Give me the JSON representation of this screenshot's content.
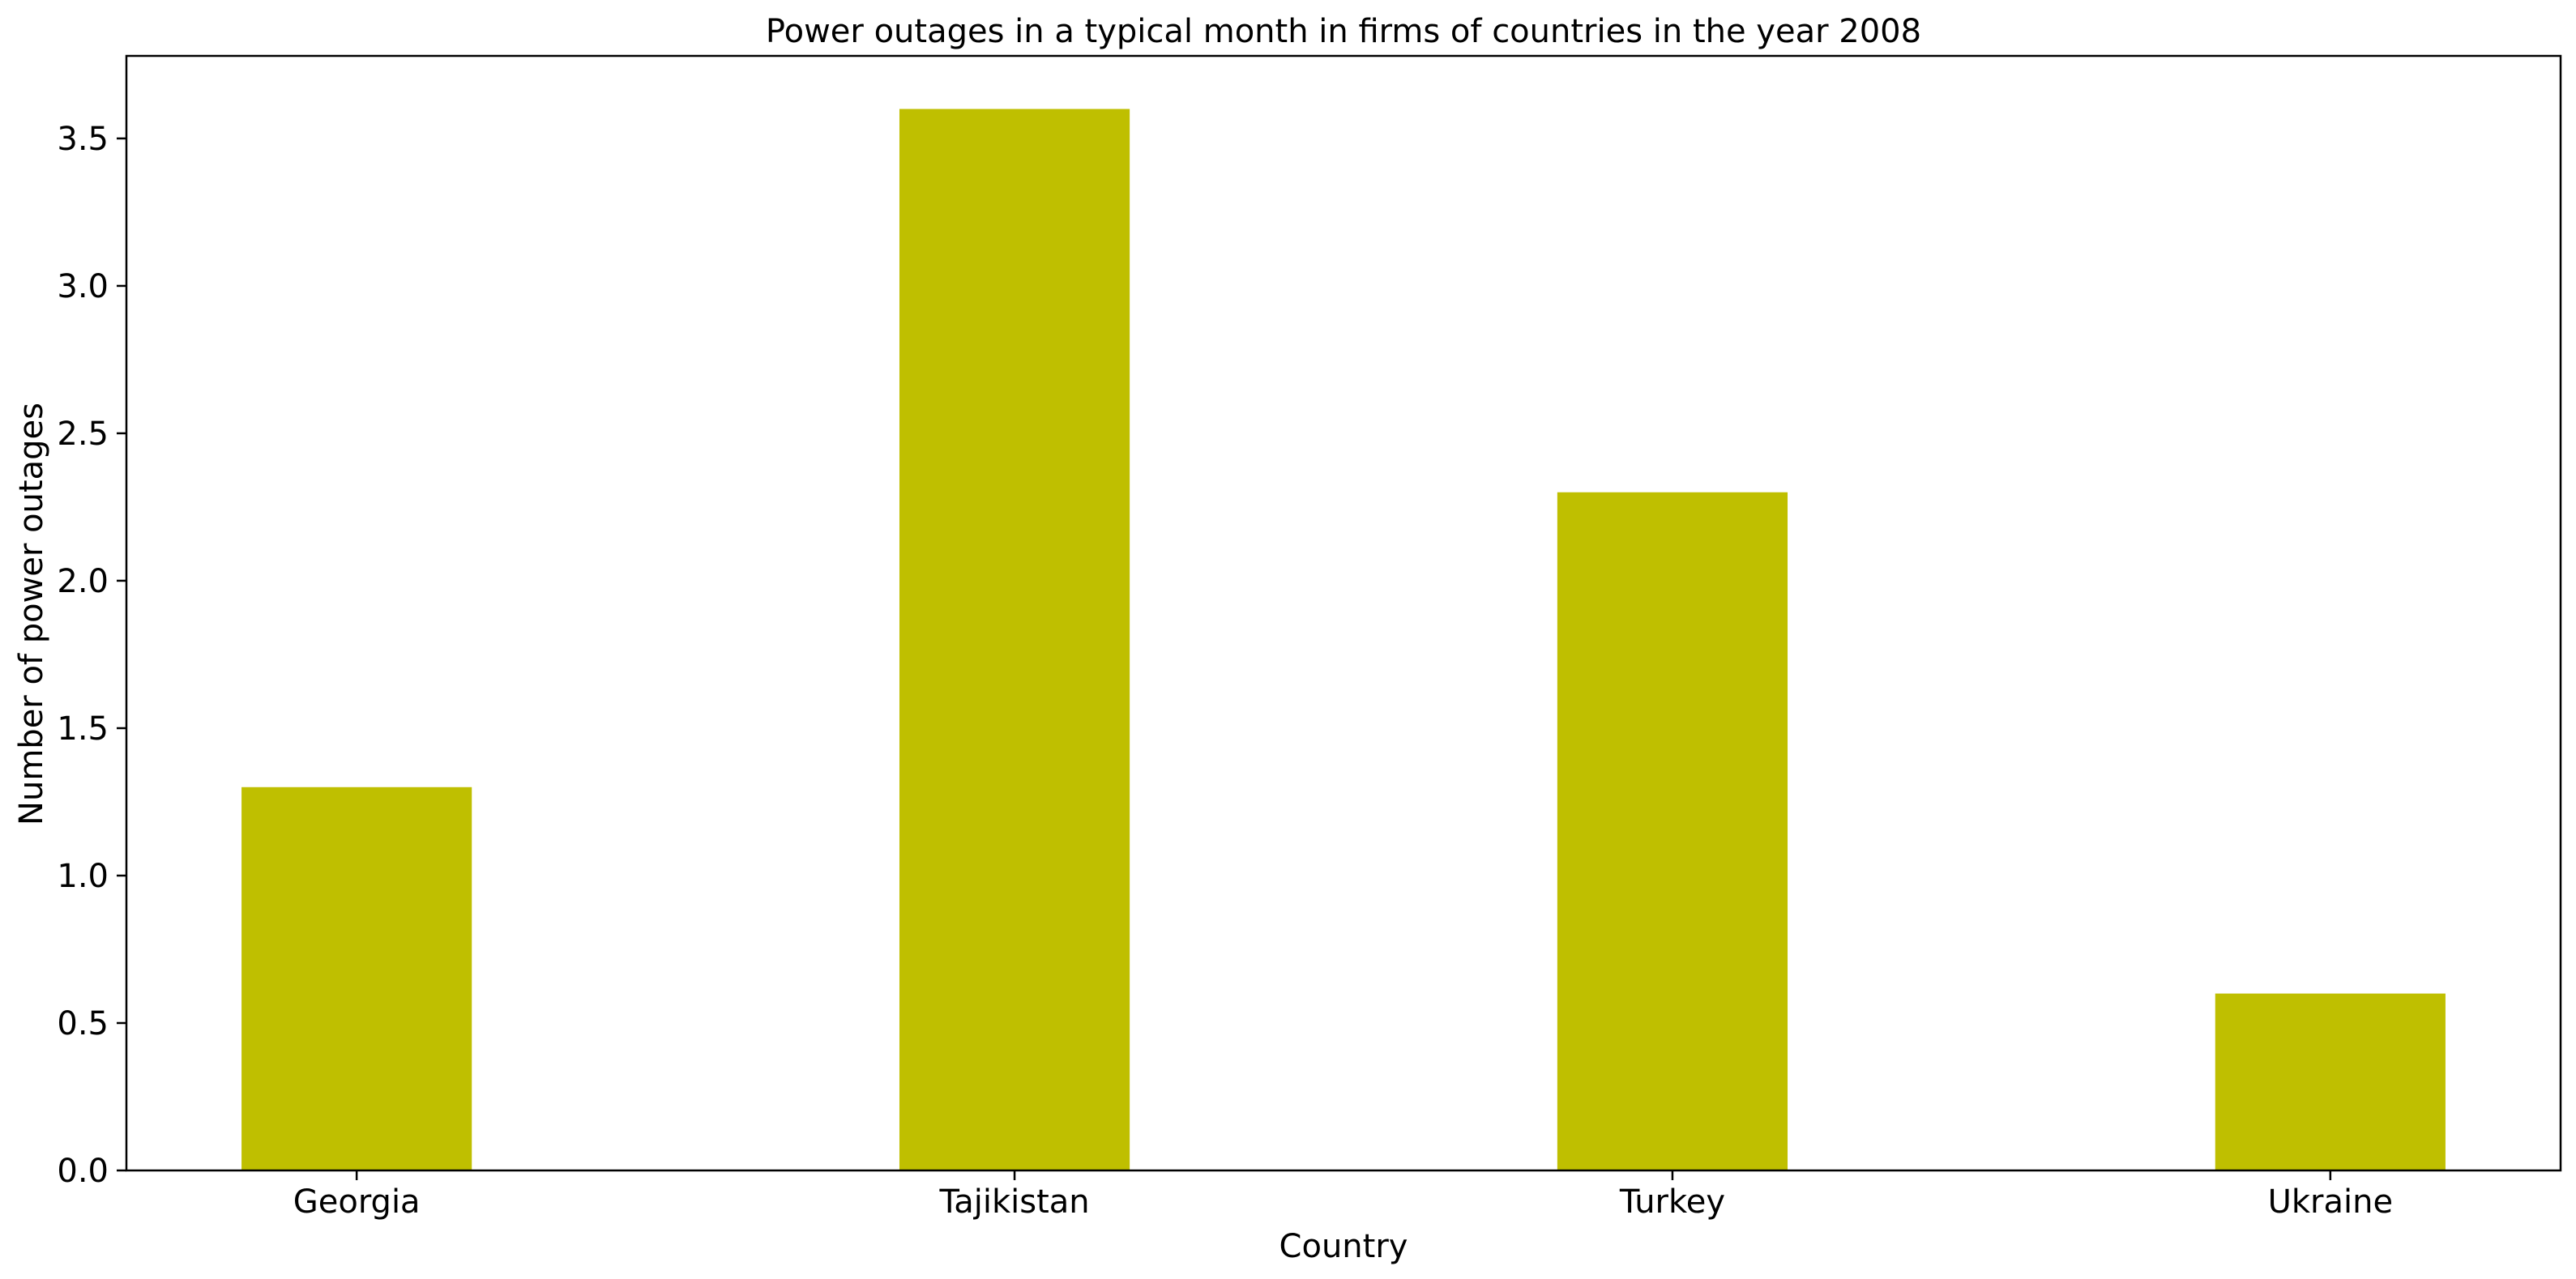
{
  "chart_data": {
    "type": "bar",
    "title": "Power outages in a typical month in firms of countries in the year 2008",
    "xlabel": "Country",
    "ylabel": "Number of power outages",
    "categories": [
      "Georgia",
      "Tajikistan",
      "Turkey",
      "Ukraine"
    ],
    "values": [
      1.3,
      3.6,
      2.3,
      0.6
    ],
    "ylim": [
      0,
      3.78
    ],
    "yticks": [
      0.0,
      0.5,
      1.0,
      1.5,
      2.0,
      2.5,
      3.0,
      3.5
    ],
    "ytick_labels": [
      "0.0",
      "0.5",
      "1.0",
      "1.5",
      "2.0",
      "2.5",
      "3.0",
      "3.5"
    ],
    "bar_color": "#bfbf00",
    "grid": false,
    "legend": "none"
  }
}
